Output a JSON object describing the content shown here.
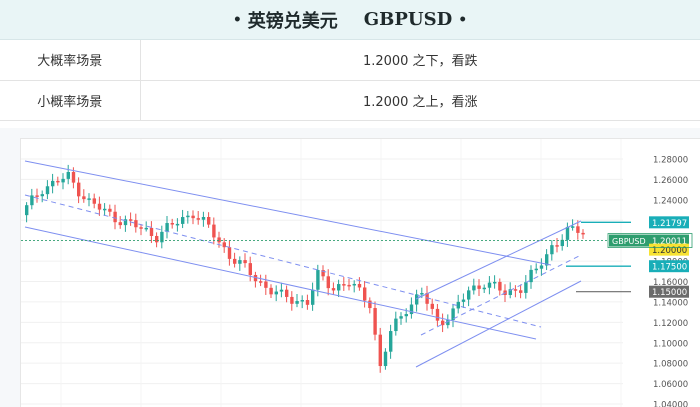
{
  "header": {
    "title_cn": "英镑兑美元",
    "title_en": "GBPUSD",
    "bullet": "•"
  },
  "scenarios": [
    {
      "label": "大概率场景",
      "text": "1.2000 之下，看跌"
    },
    {
      "label": "小概率场景",
      "text": "1.2000 之上，看涨"
    }
  ],
  "chart_data": {
    "type": "candlestick",
    "symbol_label": "GBPUSD",
    "y_ticks": [
      "1.28000",
      "1.26000",
      "1.24000",
      "1.22000",
      "1.18000",
      "1.16000",
      "1.14000",
      "1.12000",
      "1.10000",
      "1.08000",
      "1.06000",
      "1.04000"
    ],
    "ylim": [
      1.04,
      1.28
    ],
    "price_tags": [
      {
        "value": "1.21797",
        "color": "#19aeb8"
      },
      {
        "value": "1.20011",
        "color": "#2e9d6e"
      },
      {
        "value": "1.20000",
        "color": "#f7e233"
      },
      {
        "value": "1.17500",
        "color": "#19aeb8"
      },
      {
        "value": "1.15000",
        "color": "#6b6b6b"
      }
    ],
    "colors": {
      "up": "#26a69a",
      "down": "#ef5350",
      "channel": "#7e8ff0",
      "ref_line": "#19aeb8"
    }
  }
}
